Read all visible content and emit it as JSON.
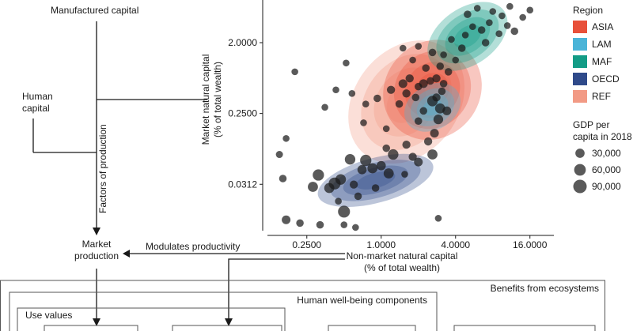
{
  "diagram": {
    "manufactured_capital": "Manufactured capital",
    "human_capital_line1": "Human",
    "human_capital_line2": "capital",
    "factors_of_production": "Factors of production",
    "market_production_line1": "Market",
    "market_production_line2": "production",
    "modulates_productivity": "Modulates productivity",
    "benefits_from_ecosystems": "Benefits from ecosystems",
    "human_wellbeing_components": "Human well-being components",
    "use_values": "Use values"
  },
  "chart_data": {
    "type": "scatter",
    "x_scale": "log2",
    "y_scale": "log2",
    "xlabel_line1": "Non-market natural capital",
    "xlabel_line2": "(% of total wealth)",
    "ylabel_line1": "Market natural capital",
    "ylabel_line2": "(% of total wealth)",
    "xlim": [
      0.12,
      25
    ],
    "ylim": [
      0.008,
      7
    ],
    "x_ticks": [
      0.25,
      1,
      4,
      16
    ],
    "x_tick_labels": [
      "0.2500",
      "1.0000",
      "4.0000",
      "16.0000"
    ],
    "y_ticks": [
      0.03125,
      0.25,
      2
    ],
    "y_tick_labels": [
      "0.0312",
      "0.2500",
      "2.0000"
    ],
    "legend": {
      "region_title": "Region",
      "regions": [
        {
          "name": "ASIA",
          "color": "#e8503a"
        },
        {
          "name": "LAM",
          "color": "#4ab4d8"
        },
        {
          "name": "MAF",
          "color": "#139c86"
        },
        {
          "name": "OECD",
          "color": "#2f4a8a"
        },
        {
          "name": "REF",
          "color": "#f29a85"
        }
      ],
      "size_title_line1": "GDP per",
      "size_title_line2": "capita in 2018",
      "sizes": [
        {
          "label": "30,000",
          "value": 30000
        },
        {
          "label": "60,000",
          "value": 60000
        },
        {
          "label": "90,000",
          "value": 90000
        }
      ]
    },
    "density_regions": [
      {
        "region": "REF",
        "cx": 1.6,
        "cy": 0.35,
        "rx_log": 3.6,
        "ry_log": 4.4,
        "rot": 52
      },
      {
        "region": "ASIA",
        "cx": 2.6,
        "cy": 0.5,
        "rx_log": 2.8,
        "ry_log": 4.0,
        "rot": 50
      },
      {
        "region": "OECD",
        "cx": 0.9,
        "cy": 0.035,
        "rx_log": 3.2,
        "ry_log": 1.9,
        "rot": 15
      },
      {
        "region": "LAM",
        "cx": 2.6,
        "cy": 0.3,
        "rx_log": 1.6,
        "ry_log": 1.9,
        "rot": 30
      },
      {
        "region": "MAF",
        "cx": 5.0,
        "cy": 2.4,
        "rx_log": 2.4,
        "ry_log": 2.4,
        "rot": 35
      }
    ],
    "points": [
      {
        "x": 0.17,
        "y": 0.12,
        "gdp": 10000
      },
      {
        "x": 0.15,
        "y": 0.075,
        "gdp": 12000
      },
      {
        "x": 0.16,
        "y": 0.037,
        "gdp": 15000
      },
      {
        "x": 0.17,
        "y": 0.011,
        "gdp": 25000
      },
      {
        "x": 0.22,
        "y": 0.01,
        "gdp": 15000
      },
      {
        "x": 0.28,
        "y": 0.029,
        "gdp": 40000
      },
      {
        "x": 0.31,
        "y": 0.041,
        "gdp": 55000
      },
      {
        "x": 0.38,
        "y": 0.028,
        "gdp": 40000
      },
      {
        "x": 0.42,
        "y": 0.032,
        "gdp": 65000
      },
      {
        "x": 0.47,
        "y": 0.036,
        "gdp": 45000
      },
      {
        "x": 0.5,
        "y": 0.014,
        "gdp": 65000
      },
      {
        "x": 0.56,
        "y": 0.065,
        "gdp": 45000
      },
      {
        "x": 0.6,
        "y": 0.031,
        "gdp": 20000
      },
      {
        "x": 0.65,
        "y": 0.022,
        "gdp": 15000
      },
      {
        "x": 0.7,
        "y": 0.048,
        "gdp": 30000
      },
      {
        "x": 0.75,
        "y": 0.063,
        "gdp": 55000
      },
      {
        "x": 0.85,
        "y": 0.05,
        "gdp": 40000
      },
      {
        "x": 1.0,
        "y": 0.054,
        "gdp": 30000
      },
      {
        "x": 1.15,
        "y": 0.043,
        "gdp": 40000
      },
      {
        "x": 1.25,
        "y": 0.075,
        "gdp": 45000
      },
      {
        "x": 1.6,
        "y": 0.1,
        "gdp": 20000
      },
      {
        "x": 1.8,
        "y": 0.07,
        "gdp": 20000
      },
      {
        "x": 2.0,
        "y": 0.06,
        "gdp": 25000
      },
      {
        "x": 2.4,
        "y": 0.11,
        "gdp": 20000
      },
      {
        "x": 2.6,
        "y": 0.075,
        "gdp": 40000
      },
      {
        "x": 2.7,
        "y": 0.14,
        "gdp": 25000
      },
      {
        "x": 2.9,
        "y": 0.21,
        "gdp": 35000
      },
      {
        "x": 3.0,
        "y": 0.29,
        "gdp": 40000
      },
      {
        "x": 2.6,
        "y": 0.36,
        "gdp": 45000
      },
      {
        "x": 3.4,
        "y": 0.27,
        "gdp": 25000
      },
      {
        "x": 2.2,
        "y": 0.27,
        "gdp": 15000
      },
      {
        "x": 1.9,
        "y": 0.4,
        "gdp": 15000
      },
      {
        "x": 1.6,
        "y": 0.45,
        "gdp": 20000
      },
      {
        "x": 1.5,
        "y": 0.6,
        "gdp": 25000
      },
      {
        "x": 1.2,
        "y": 0.5,
        "gdp": 20000
      },
      {
        "x": 1.4,
        "y": 0.33,
        "gdp": 15000
      },
      {
        "x": 0.93,
        "y": 0.39,
        "gdp": 15000
      },
      {
        "x": 0.75,
        "y": 0.33,
        "gdp": 10000
      },
      {
        "x": 0.58,
        "y": 0.45,
        "gdp": 10000
      },
      {
        "x": 0.43,
        "y": 0.5,
        "gdp": 10000
      },
      {
        "x": 0.35,
        "y": 0.3,
        "gdp": 10000
      },
      {
        "x": 0.2,
        "y": 0.85,
        "gdp": 10000
      },
      {
        "x": 0.52,
        "y": 1.1,
        "gdp": 10000
      },
      {
        "x": 1.7,
        "y": 0.7,
        "gdp": 20000
      },
      {
        "x": 2.0,
        "y": 0.55,
        "gdp": 15000
      },
      {
        "x": 2.2,
        "y": 0.6,
        "gdp": 25000
      },
      {
        "x": 2.5,
        "y": 0.65,
        "gdp": 15000
      },
      {
        "x": 2.8,
        "y": 0.7,
        "gdp": 20000
      },
      {
        "x": 3.2,
        "y": 0.6,
        "gdp": 15000
      },
      {
        "x": 3.5,
        "y": 0.85,
        "gdp": 15000
      },
      {
        "x": 3.0,
        "y": 1.0,
        "gdp": 15000
      },
      {
        "x": 2.3,
        "y": 0.95,
        "gdp": 15000
      },
      {
        "x": 1.8,
        "y": 1.2,
        "gdp": 10000
      },
      {
        "x": 1.5,
        "y": 1.7,
        "gdp": 10000
      },
      {
        "x": 2.0,
        "y": 1.8,
        "gdp": 10000
      },
      {
        "x": 2.6,
        "y": 1.5,
        "gdp": 15000
      },
      {
        "x": 3.2,
        "y": 1.4,
        "gdp": 10000
      },
      {
        "x": 4.0,
        "y": 1.2,
        "gdp": 10000
      },
      {
        "x": 4.5,
        "y": 1.7,
        "gdp": 15000
      },
      {
        "x": 3.7,
        "y": 2.2,
        "gdp": 10000
      },
      {
        "x": 4.8,
        "y": 2.5,
        "gdp": 10000
      },
      {
        "x": 5.5,
        "y": 3.2,
        "gdp": 10000
      },
      {
        "x": 6.5,
        "y": 2.9,
        "gdp": 15000
      },
      {
        "x": 7.5,
        "y": 3.6,
        "gdp": 10000
      },
      {
        "x": 9.0,
        "y": 2.6,
        "gdp": 10000
      },
      {
        "x": 10.5,
        "y": 3.3,
        "gdp": 10000
      },
      {
        "x": 12.0,
        "y": 2.8,
        "gdp": 15000
      },
      {
        "x": 14.0,
        "y": 4.2,
        "gdp": 10000
      },
      {
        "x": 8.0,
        "y": 5.0,
        "gdp": 10000
      },
      {
        "x": 6.0,
        "y": 5.5,
        "gdp": 10000
      },
      {
        "x": 5.0,
        "y": 4.6,
        "gdp": 15000
      },
      {
        "x": 11.0,
        "y": 5.8,
        "gdp": 10000
      },
      {
        "x": 9.5,
        "y": 4.4,
        "gdp": 10000
      },
      {
        "x": 7.0,
        "y": 2.0,
        "gdp": 15000
      },
      {
        "x": 16.0,
        "y": 5.2,
        "gdp": 10000
      },
      {
        "x": 0.72,
        "y": 0.19,
        "gdp": 10000
      },
      {
        "x": 1.1,
        "y": 0.16,
        "gdp": 10000
      },
      {
        "x": 2.0,
        "y": 0.2,
        "gdp": 15000
      },
      {
        "x": 2.8,
        "y": 0.4,
        "gdp": 20000
      },
      {
        "x": 3.1,
        "y": 0.48,
        "gdp": 15000
      },
      {
        "x": 1.55,
        "y": 0.042,
        "gdp": 10000
      },
      {
        "x": 0.9,
        "y": 0.028,
        "gdp": 15000
      },
      {
        "x": 0.45,
        "y": 0.019,
        "gdp": 10000
      },
      {
        "x": 0.32,
        "y": 0.0095,
        "gdp": 15000
      },
      {
        "x": 0.62,
        "y": 0.0088,
        "gdp": 10000
      },
      {
        "x": 0.5,
        "y": 0.0095,
        "gdp": 10000
      },
      {
        "x": 2.9,
        "y": 0.0115,
        "gdp": 10000
      },
      {
        "x": 1.1,
        "y": 0.09,
        "gdp": 15000
      }
    ]
  }
}
